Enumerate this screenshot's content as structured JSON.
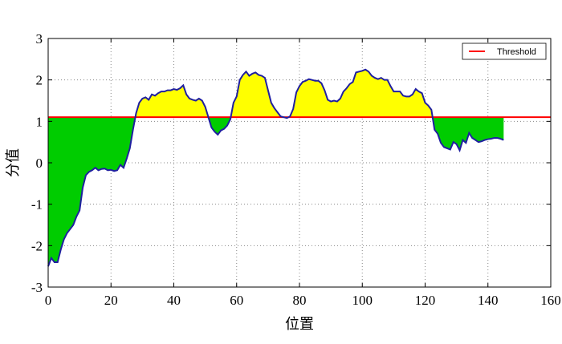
{
  "chart_data": {
    "type": "area",
    "xlabel": "位置",
    "ylabel": "分值",
    "xlim": [
      0,
      160
    ],
    "ylim": [
      -3,
      3
    ],
    "xticks": [
      0,
      20,
      40,
      60,
      80,
      100,
      120,
      140,
      160
    ],
    "yticks": [
      -3,
      -2,
      -1,
      0,
      1,
      2,
      3
    ],
    "grid": true,
    "legend_position": "top-right",
    "threshold": {
      "name": "Threshold",
      "value": 1.1,
      "color": "#ff0000"
    },
    "line_color": "#1f1fa0",
    "fill_above_color": "#ffff00",
    "fill_below_color": "#00cc00",
    "x": [
      0,
      1,
      2,
      3,
      4,
      5,
      6,
      7,
      8,
      9,
      10,
      11,
      12,
      13,
      14,
      15,
      16,
      17,
      18,
      19,
      20,
      21,
      22,
      23,
      24,
      25,
      26,
      27,
      28,
      29,
      30,
      31,
      32,
      33,
      34,
      35,
      36,
      37,
      38,
      39,
      40,
      41,
      42,
      43,
      44,
      45,
      46,
      47,
      48,
      49,
      50,
      51,
      52,
      53,
      54,
      55,
      56,
      57,
      58,
      59,
      60,
      61,
      62,
      63,
      64,
      65,
      66,
      67,
      68,
      69,
      70,
      71,
      72,
      73,
      74,
      75,
      76,
      77,
      78,
      79,
      80,
      81,
      82,
      83,
      84,
      85,
      86,
      87,
      88,
      89,
      90,
      91,
      92,
      93,
      94,
      95,
      96,
      97,
      98,
      99,
      100,
      101,
      102,
      103,
      104,
      105,
      106,
      107,
      108,
      109,
      110,
      111,
      112,
      113,
      114,
      115,
      116,
      117,
      118,
      119,
      120,
      121,
      122,
      123,
      124,
      125,
      126,
      127,
      128,
      129,
      130,
      131,
      132,
      133,
      134,
      135,
      136,
      137,
      138,
      139,
      140,
      141,
      142,
      143,
      144,
      145
    ],
    "y": [
      -2.5,
      -2.3,
      -2.4,
      -2.4,
      -2.1,
      -1.85,
      -1.7,
      -1.6,
      -1.5,
      -1.3,
      -1.15,
      -0.6,
      -0.3,
      -0.22,
      -0.18,
      -0.12,
      -0.18,
      -0.15,
      -0.14,
      -0.18,
      -0.17,
      -0.2,
      -0.18,
      -0.05,
      -0.12,
      0.1,
      0.35,
      0.8,
      1.2,
      1.45,
      1.55,
      1.58,
      1.52,
      1.65,
      1.62,
      1.68,
      1.72,
      1.72,
      1.75,
      1.75,
      1.78,
      1.76,
      1.8,
      1.87,
      1.65,
      1.55,
      1.52,
      1.5,
      1.55,
      1.5,
      1.35,
      1.1,
      0.85,
      0.75,
      0.68,
      0.78,
      0.82,
      0.9,
      1.05,
      1.45,
      1.6,
      2.0,
      2.12,
      2.2,
      2.1,
      2.15,
      2.18,
      2.12,
      2.1,
      2.05,
      1.75,
      1.45,
      1.32,
      1.22,
      1.12,
      1.1,
      1.08,
      1.12,
      1.3,
      1.7,
      1.85,
      1.95,
      1.98,
      2.02,
      2.0,
      1.98,
      1.98,
      1.92,
      1.75,
      1.52,
      1.48,
      1.5,
      1.48,
      1.55,
      1.72,
      1.8,
      1.9,
      1.95,
      2.18,
      2.2,
      2.22,
      2.25,
      2.2,
      2.1,
      2.05,
      2.02,
      2.05,
      2.0,
      2.0,
      1.85,
      1.72,
      1.72,
      1.72,
      1.62,
      1.6,
      1.6,
      1.65,
      1.78,
      1.72,
      1.68,
      1.45,
      1.38,
      1.28,
      0.8,
      0.7,
      0.48,
      0.38,
      0.35,
      0.32,
      0.5,
      0.45,
      0.3,
      0.55,
      0.48,
      0.72,
      0.6,
      0.55,
      0.5,
      0.52,
      0.55,
      0.57,
      0.58,
      0.6,
      0.6,
      0.58,
      0.55
    ]
  }
}
